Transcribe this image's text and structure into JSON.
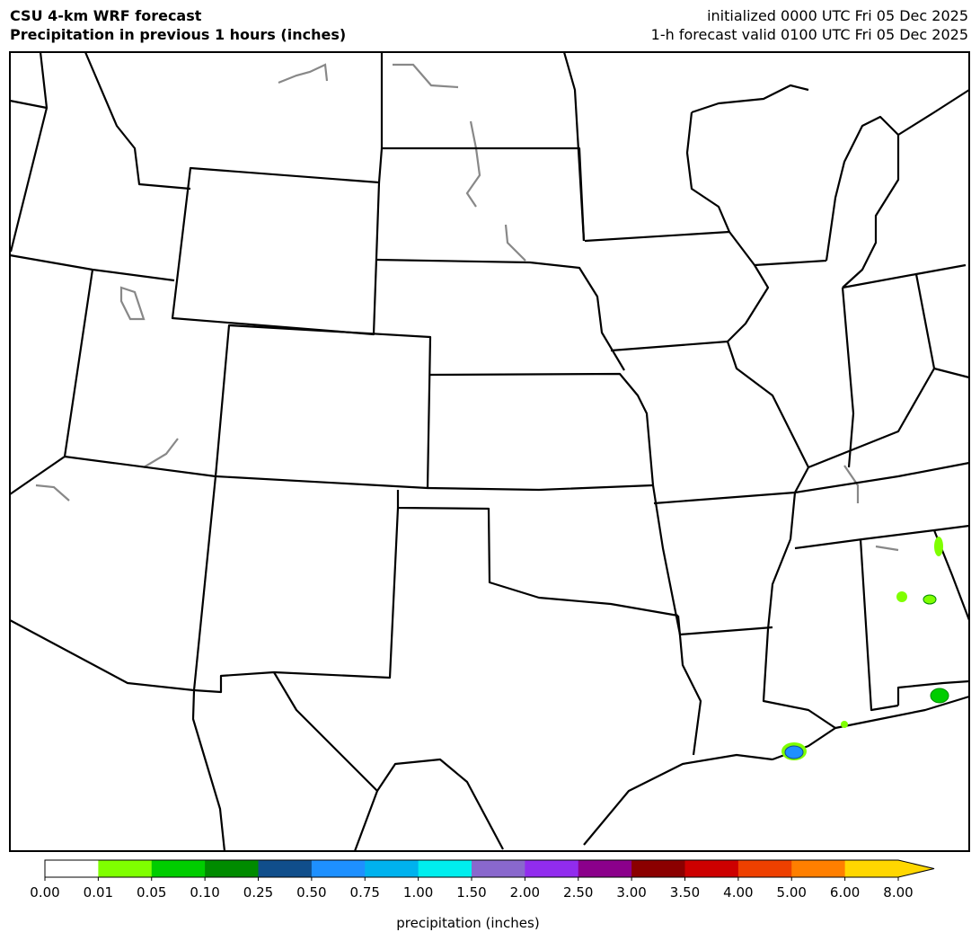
{
  "header": {
    "title_left": [
      "CSU 4-km WRF forecast",
      "Precipitation in previous 1 hours (inches)"
    ],
    "title_right": [
      "initialized 0000 UTC Fri 05 Dec 2025",
      "1-h forecast valid 0100 UTC Fri 05 Dec 2025"
    ]
  },
  "colorbar": {
    "label": "precipitation (inches)",
    "ticks": [
      "0.00",
      "0.01",
      "0.05",
      "0.10",
      "0.25",
      "0.50",
      "0.75",
      "1.00",
      "1.50",
      "2.00",
      "2.50",
      "3.00",
      "3.50",
      "4.00",
      "5.00",
      "6.00",
      "8.00"
    ],
    "colors": [
      "#ffffff",
      "#7fff00",
      "#00cd00",
      "#008b00",
      "#104e8b",
      "#1e90ff",
      "#00b2ee",
      "#00eeee",
      "#8968cd",
      "#912cee",
      "#8b008b",
      "#8b0000",
      "#cd0000",
      "#ee4000",
      "#ff7f00",
      "#ffd700"
    ],
    "extend_color": "#ffd700"
  }
}
